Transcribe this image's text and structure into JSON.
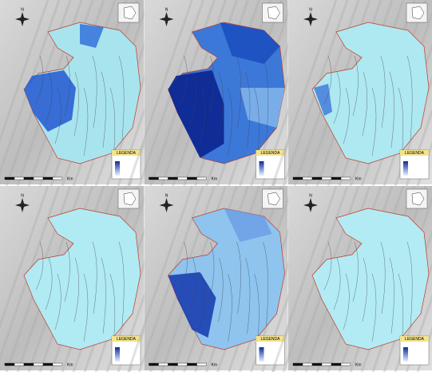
{
  "panels": [
    {
      "north": "N",
      "legend_title": "LEGENDA",
      "scale_unit": "Km"
    },
    {
      "north": "N",
      "legend_title": "LEGENDA",
      "scale_unit": "Km"
    },
    {
      "north": "N",
      "legend_title": "LEGENDA",
      "scale_unit": "Km"
    },
    {
      "north": "N",
      "legend_title": "LEGENDA",
      "scale_unit": "Km"
    },
    {
      "north": "N",
      "legend_title": "LEGENDA",
      "scale_unit": "Km"
    },
    {
      "north": "N",
      "legend_title": "LEGENDA",
      "scale_unit": "Km"
    }
  ]
}
